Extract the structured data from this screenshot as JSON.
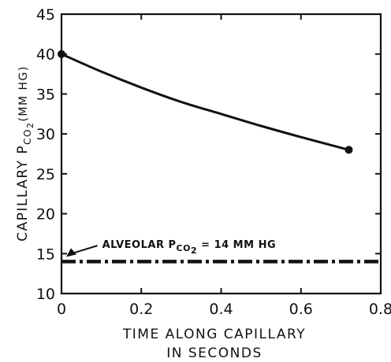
{
  "chart_data": {
    "type": "line",
    "title": "",
    "xlabel_line1": "TIME ALONG CAPILLARY",
    "xlabel_line2": "IN SECONDS",
    "ylabel_main": "CAPILLARY P",
    "ylabel_sub": "CO",
    "ylabel_subnum": "2",
    "ylabel_unit": "(MM HG)",
    "xlim": [
      0,
      0.8
    ],
    "ylim": [
      10,
      45
    ],
    "x_ticks": [
      0,
      0.2,
      0.4,
      0.6,
      0.8
    ],
    "x_tick_labels": [
      "0",
      "0.2",
      "0.4",
      "0.6",
      "0.8"
    ],
    "y_ticks": [
      10,
      15,
      20,
      25,
      30,
      35,
      40,
      45
    ],
    "y_tick_labels": [
      "10",
      "15",
      "20",
      "25",
      "30",
      "35",
      "40",
      "45"
    ],
    "grid": false,
    "series": [
      {
        "style": "solid",
        "x": [
          0,
          0.1,
          0.2,
          0.3,
          0.4,
          0.5,
          0.6,
          0.72
        ],
        "y": [
          40,
          37.8,
          35.8,
          34.0,
          32.5,
          31.0,
          29.6,
          28
        ],
        "markers_at_ends": true
      },
      {
        "style": "dash-dot",
        "x": [
          0,
          0.8
        ],
        "y": [
          14,
          14
        ]
      }
    ],
    "annotations": [
      {
        "text_main": "ALVEOLAR P",
        "text_sub": "CO",
        "text_subnum": "2",
        "text_rest": " = 14 MM HG",
        "points_to": {
          "x": 0,
          "y": 14
        }
      }
    ]
  }
}
